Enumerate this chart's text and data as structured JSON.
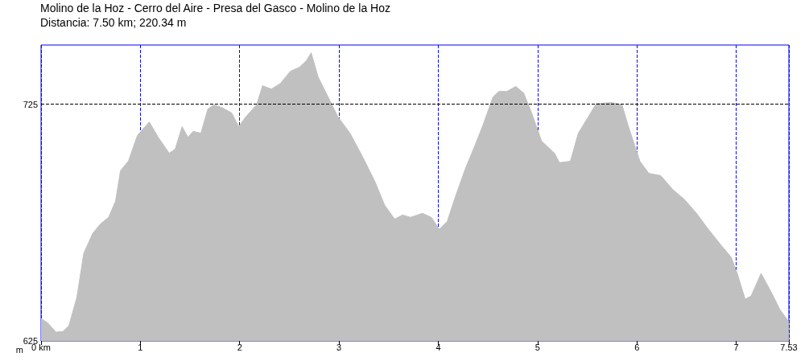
{
  "chart_data": {
    "type": "area",
    "title": "Molino de la Hoz - Cerro del Aire - Presa del Gasco - Molino de la Hoz",
    "subtitle": "Distancia: 7.50 km; 220.34 m",
    "ylabel": "m",
    "series": [
      {
        "color": "#c0c0c0",
        "x": [
          0,
          0.07,
          0.15,
          0.22,
          0.28,
          0.36,
          0.43,
          0.52,
          0.6,
          0.68,
          0.75,
          0.8,
          0.88,
          0.97,
          1.09,
          1.18,
          1.29,
          1.35,
          1.42,
          1.48,
          1.53,
          1.61,
          1.68,
          1.74,
          1.82,
          1.92,
          1.99,
          2.06,
          2.17,
          2.23,
          2.32,
          2.41,
          2.51,
          2.6,
          2.67,
          2.72,
          2.79,
          2.91,
          2.99,
          3.11,
          3.24,
          3.36,
          3.46,
          3.56,
          3.64,
          3.72,
          3.84,
          3.93,
          4.01,
          4.09,
          4.17,
          4.27,
          4.37,
          4.45,
          4.55,
          4.61,
          4.69,
          4.78,
          4.86,
          4.94,
          5.04,
          5.17,
          5.22,
          5.33,
          5.41,
          5.51,
          5.59,
          5.75,
          5.85,
          5.91,
          6.03,
          6.12,
          6.24,
          6.36,
          6.48,
          6.6,
          6.72,
          6.85,
          6.95,
          7.01,
          7.09,
          7.15,
          7.25,
          7.36,
          7.44,
          7.53
        ],
        "values": [
          634.5,
          632.5,
          628.7,
          629,
          631.4,
          643.3,
          662,
          670.4,
          674.5,
          677.2,
          684,
          696.9,
          701,
          711.8,
          717.5,
          711,
          704.3,
          706,
          715.5,
          711,
          713.5,
          712.8,
          723,
          724.7,
          723.6,
          721.3,
          715.5,
          719.6,
          724.7,
          732.8,
          731.4,
          733.8,
          738.9,
          740.6,
          743.3,
          746.7,
          736.5,
          726.4,
          719.6,
          712.8,
          702.6,
          692.5,
          682.3,
          676.5,
          678.2,
          677.2,
          678.9,
          677.2,
          672.1,
          675.5,
          685.7,
          697.5,
          707.7,
          716.2,
          728,
          730.4,
          730.4,
          732.5,
          729.7,
          721.3,
          709.4,
          704.3,
          700.3,
          700.9,
          712.8,
          719.6,
          725.3,
          725.7,
          724.7,
          716.2,
          700.9,
          695.8,
          694.8,
          689,
          684.7,
          678.9,
          672.1,
          665.3,
          660.3,
          653.5,
          642.6,
          644,
          653.5,
          645,
          638.2,
          633.1
        ]
      }
    ],
    "xlim": [
      0,
      7.53
    ],
    "xticks": [
      {
        "value": 0,
        "label": "0 km"
      },
      1,
      2,
      3,
      4,
      5,
      6,
      7,
      7.53
    ],
    "ylim": [
      625,
      750
    ],
    "yticks": [
      625,
      725
    ],
    "grid": "x",
    "ref_lines": [
      {
        "axis": "y",
        "value": 725,
        "color": "#000000",
        "line_style": "dashed"
      }
    ],
    "marker": "none",
    "line_style": "solid"
  }
}
